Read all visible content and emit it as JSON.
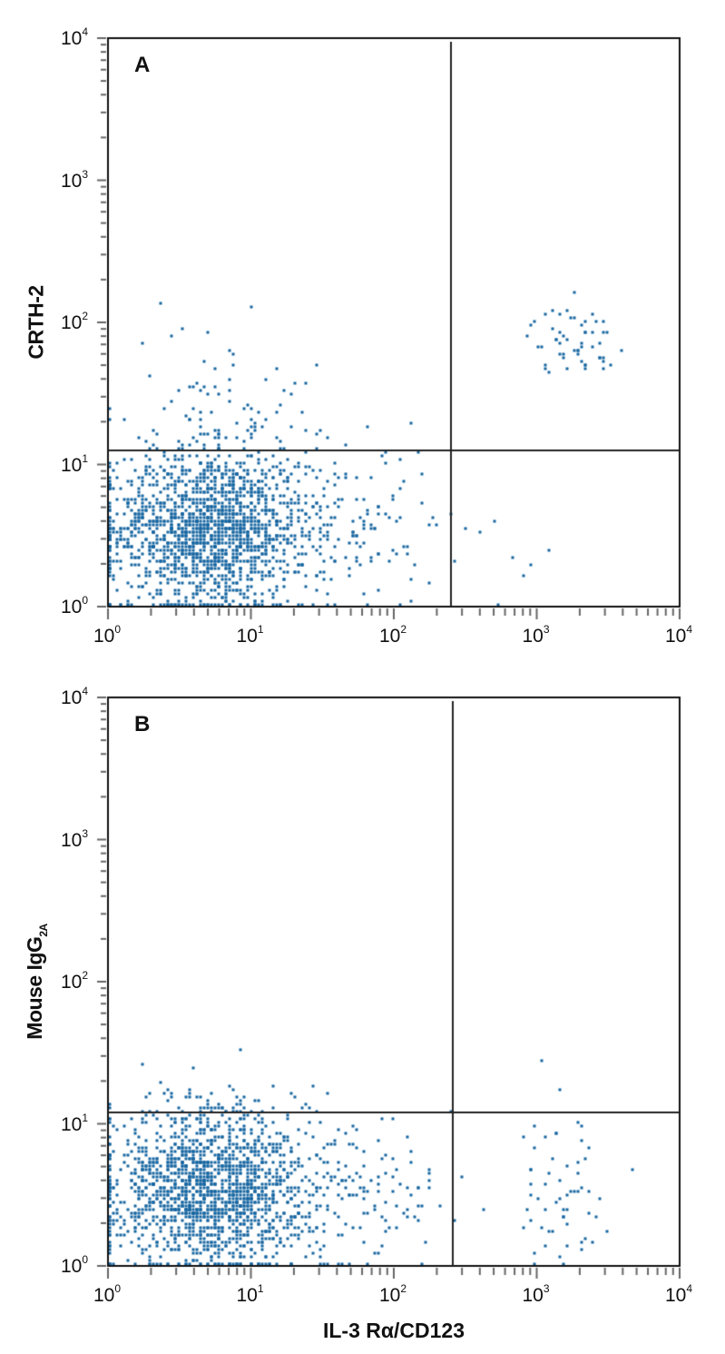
{
  "chart_data": [
    {
      "type": "scatter",
      "subtype": "flow-cytometry-quadrant-dot-plot",
      "panel_label": "A",
      "xlabel": "IL-3 Rα/CD123",
      "ylabel": "CRTH-2",
      "xscale": "log",
      "yscale": "log",
      "xlim": [
        1,
        10000
      ],
      "ylim": [
        1,
        10000
      ],
      "xticks": [
        "10^0",
        "10^1",
        "10^2",
        "10^3",
        "10^4"
      ],
      "yticks": [
        "10^0",
        "10^1",
        "10^2",
        "10^3",
        "10^4"
      ],
      "quadrant_gates": {
        "x": 250,
        "y": 12.5
      },
      "populations": [
        {
          "name": "double-negative (lower-left) main cluster",
          "x_center": 5,
          "y_center": 3.5,
          "x_spread_decades": 0.35,
          "y_spread_decades": 0.28,
          "count": 1500
        },
        {
          "name": "lower-left tail toward CD123+",
          "x_center": 40,
          "y_center": 3.5,
          "x_spread_decades": 0.35,
          "y_spread_decades": 0.3,
          "count": 170
        },
        {
          "name": "upper-left CRTH-2 low scatter",
          "x_center": 6,
          "y_center": 25,
          "x_spread_decades": 0.35,
          "y_spread_decades": 0.3,
          "count": 90
        },
        {
          "name": "upper-right CRTH-2+ CD123+ basophils",
          "x_center": 1800,
          "y_center": 75,
          "x_spread_decades": 0.15,
          "y_spread_decades": 0.12,
          "count": 55
        },
        {
          "name": "lower-right sparse",
          "x_center": 500,
          "y_center": 3,
          "x_spread_decades": 0.25,
          "y_spread_decades": 0.3,
          "count": 8
        }
      ]
    },
    {
      "type": "scatter",
      "subtype": "flow-cytometry-quadrant-dot-plot",
      "panel_label": "B",
      "xlabel": "IL-3 Rα/CD123",
      "ylabel": "Mouse IgG2A",
      "xscale": "log",
      "yscale": "log",
      "xlim": [
        1,
        10000
      ],
      "ylim": [
        1,
        10000
      ],
      "xticks": [
        "10^0",
        "10^1",
        "10^2",
        "10^3",
        "10^4"
      ],
      "yticks": [
        "10^0",
        "10^1",
        "10^2",
        "10^3",
        "10^4"
      ],
      "quadrant_gates": {
        "x": 260,
        "y": 12
      },
      "populations": [
        {
          "name": "lower-left main cluster",
          "x_center": 5,
          "y_center": 3.5,
          "x_spread_decades": 0.35,
          "y_spread_decades": 0.28,
          "count": 1500
        },
        {
          "name": "lower-left tail toward CD123+",
          "x_center": 40,
          "y_center": 3.5,
          "x_spread_decades": 0.35,
          "y_spread_decades": 0.3,
          "count": 170
        },
        {
          "name": "lower-right isotype CD123+ cells",
          "x_center": 1500,
          "y_center": 3.5,
          "x_spread_decades": 0.2,
          "y_spread_decades": 0.3,
          "count": 60
        },
        {
          "name": "upper-left sparse",
          "x_center": 5,
          "y_center": 15,
          "x_spread_decades": 0.35,
          "y_spread_decades": 0.1,
          "count": 20
        }
      ]
    }
  ],
  "figure": {
    "panels": [
      {
        "letter": "A",
        "ylabel": "CRTH-2",
        "ylabel_sub": ""
      },
      {
        "letter": "B",
        "ylabel": "Mouse IgG",
        "ylabel_sub": "2A"
      }
    ],
    "xlabel": "IL-3 Rα/CD123",
    "tick_base": "10",
    "tick_exponents": [
      "0",
      "1",
      "2",
      "3",
      "4"
    ],
    "colors": {
      "dot": "#1565a0",
      "axis": "#111111",
      "tick": "#666666"
    }
  }
}
